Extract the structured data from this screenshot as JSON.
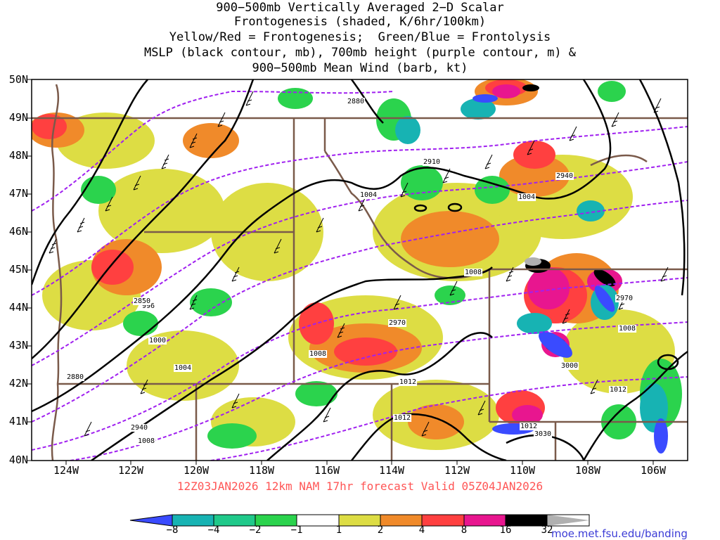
{
  "title": {
    "line1": "900−500mb Vertically Averaged 2−D Scalar",
    "line2": "Frontogenesis (shaded, K/6hr/100km)",
    "line3": "Yellow/Red = Frontogenesis;  Green/Blue = Frontolysis",
    "line4": "MSLP (black contour, mb), 700mb height (purple contour, m) &",
    "line5": "900−500mb Mean Wind (barb, kt)"
  },
  "lat_labels": [
    "50N",
    "49N",
    "48N",
    "47N",
    "46N",
    "45N",
    "44N",
    "43N",
    "42N",
    "41N",
    "40N"
  ],
  "lon_labels": [
    "124W",
    "122W",
    "120W",
    "118W",
    "116W",
    "114W",
    "112W",
    "110W",
    "108W",
    "106W"
  ],
  "valid": "12Z03JAN2026 12km NAM 17hr forecast Valid 05Z04JAN2026",
  "colorbar": {
    "labels": [
      "−8",
      "−4",
      "−2",
      "−1",
      "1",
      "2",
      "4",
      "8",
      "16",
      "32"
    ],
    "colors": [
      "#3a4bff",
      "#17b3b3",
      "#20c98a",
      "#2bd34d",
      "#ffffff",
      "#dddd44",
      "#f08a2a",
      "#ff4040",
      "#e8168f",
      "#000000",
      "#b0b0b0"
    ]
  },
  "contour_labels": {
    "mslp": [
      "1004",
      "1004",
      "1008",
      "996",
      "1000",
      "1004",
      "1008",
      "1012",
      "1012",
      "1008",
      "1008",
      "1012",
      "1012"
    ],
    "height": [
      "2880",
      "2910",
      "2940",
      "2850",
      "2970",
      "2880",
      "2940",
      "2970",
      "3000",
      "3030"
    ]
  },
  "credit": "moe.met.fsu.edu/banding"
}
